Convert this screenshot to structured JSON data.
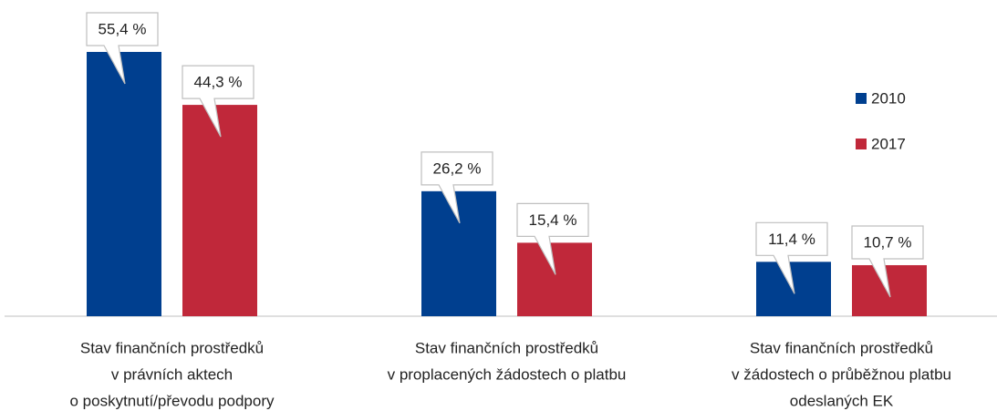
{
  "chart_data": {
    "type": "bar",
    "categories": [
      [
        "Stav finančních prostředků",
        "v právních aktech",
        "o poskytnutí/převodu podpory"
      ],
      [
        "Stav finančních prostředků",
        "v proplacených žádostech o platbu"
      ],
      [
        "Stav finančních prostředků",
        "v žádostech o průběžnou platbu",
        "odeslaných EK"
      ]
    ],
    "series": [
      {
        "name": "2010",
        "color": "#003f8f",
        "values": [
          55.4,
          26.2,
          11.4
        ],
        "value_labels": [
          "55,4 %",
          "26,2 %",
          "11,4 %"
        ]
      },
      {
        "name": "2017",
        "color": "#c0283a",
        "values": [
          44.3,
          15.4,
          10.7
        ],
        "value_labels": [
          "44,3 %",
          "15,4 %",
          "10,7 %"
        ]
      }
    ],
    "legend": "right"
  }
}
